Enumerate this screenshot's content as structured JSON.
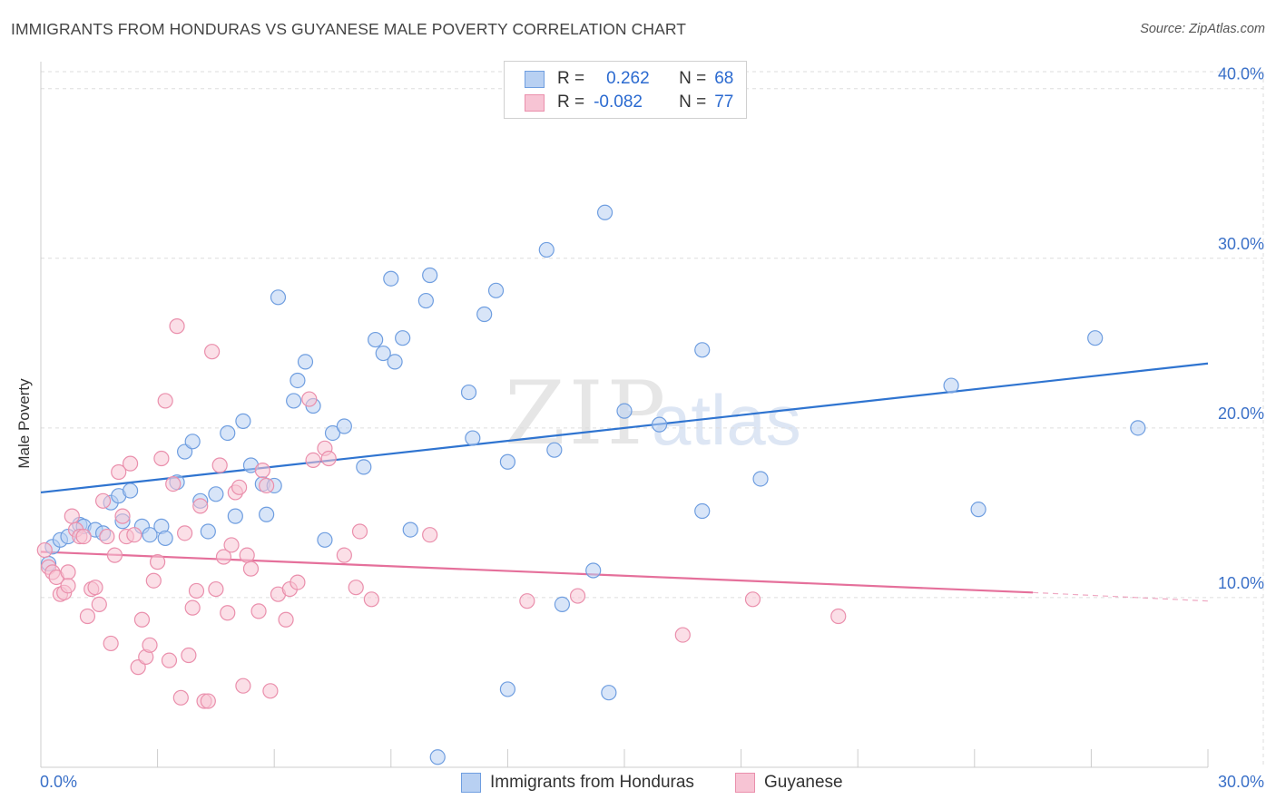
{
  "title": "IMMIGRANTS FROM HONDURAS VS GUYANESE MALE POVERTY CORRELATION CHART",
  "source": "Source: ZipAtlas.com",
  "watermark": {
    "zip": "ZIP",
    "atlas": "atlas"
  },
  "legend": {
    "rows": [
      {
        "r_label": "R =",
        "r_value": "0.262",
        "n_label": "N =",
        "n_value": "68"
      },
      {
        "r_label": "R =",
        "r_value": "-0.082",
        "n_label": "N =",
        "n_value": "77"
      }
    ]
  },
  "bottom_legend": [
    "Immigrants from Honduras",
    "Guyanese"
  ],
  "colors": {
    "blue_fill": "#b8d0f2",
    "blue_stroke": "#6f9ee0",
    "blue_line": "#2f74d0",
    "pink_fill": "#f7c4d4",
    "pink_stroke": "#ea8fac",
    "pink_line": "#e5709b",
    "tick_text": "#3a70c8",
    "grid": "#dddddd"
  },
  "chart_data": {
    "type": "scatter",
    "title": "IMMIGRANTS FROM HONDURAS VS GUYANESE MALE POVERTY CORRELATION CHART",
    "xlabel": "",
    "ylabel": "Male Poverty",
    "xlim": [
      0,
      30
    ],
    "ylim": [
      0,
      41
    ],
    "x_tick_labels": [
      "0.0%",
      "30.0%"
    ],
    "y_ticks": [
      10,
      20,
      30,
      40
    ],
    "y_tick_labels": [
      "10.0%",
      "20.0%",
      "30.0%",
      "40.0%"
    ],
    "grid": true,
    "legend_position": "top-center",
    "series": [
      {
        "name": "Immigrants from Honduras",
        "color": "#6f9ee0",
        "trend": {
          "x": [
            0,
            30
          ],
          "y": [
            16.2,
            23.8
          ]
        },
        "points": [
          [
            0.2,
            12.0
          ],
          [
            0.3,
            13.0
          ],
          [
            0.5,
            13.4
          ],
          [
            0.7,
            13.6
          ],
          [
            1.0,
            14.3
          ],
          [
            1.1,
            14.2
          ],
          [
            1.4,
            14.0
          ],
          [
            1.6,
            13.8
          ],
          [
            1.8,
            15.6
          ],
          [
            2.0,
            16.0
          ],
          [
            2.1,
            14.5
          ],
          [
            2.3,
            16.3
          ],
          [
            2.6,
            14.2
          ],
          [
            2.8,
            13.7
          ],
          [
            3.1,
            14.2
          ],
          [
            3.2,
            13.5
          ],
          [
            3.5,
            16.8
          ],
          [
            3.7,
            18.6
          ],
          [
            3.9,
            19.2
          ],
          [
            4.1,
            15.7
          ],
          [
            4.3,
            13.9
          ],
          [
            4.5,
            16.1
          ],
          [
            4.8,
            19.7
          ],
          [
            5.0,
            14.8
          ],
          [
            5.2,
            20.4
          ],
          [
            5.4,
            17.8
          ],
          [
            5.7,
            16.7
          ],
          [
            5.8,
            14.9
          ],
          [
            6.0,
            16.6
          ],
          [
            6.1,
            27.7
          ],
          [
            6.5,
            21.6
          ],
          [
            6.6,
            22.8
          ],
          [
            6.8,
            23.9
          ],
          [
            7.0,
            21.3
          ],
          [
            7.3,
            13.4
          ],
          [
            7.5,
            19.7
          ],
          [
            7.8,
            20.1
          ],
          [
            8.3,
            17.7
          ],
          [
            8.6,
            25.2
          ],
          [
            8.8,
            24.4
          ],
          [
            9.0,
            28.8
          ],
          [
            9.1,
            23.9
          ],
          [
            9.3,
            25.3
          ],
          [
            9.5,
            14.0
          ],
          [
            9.9,
            27.5
          ],
          [
            10.0,
            29.0
          ],
          [
            10.2,
            0.6
          ],
          [
            11.0,
            22.1
          ],
          [
            11.1,
            19.4
          ],
          [
            11.4,
            26.7
          ],
          [
            11.7,
            28.1
          ],
          [
            12.0,
            4.6
          ],
          [
            12.0,
            18.0
          ],
          [
            13.0,
            30.5
          ],
          [
            13.2,
            18.7
          ],
          [
            13.4,
            9.6
          ],
          [
            14.2,
            11.6
          ],
          [
            14.5,
            32.7
          ],
          [
            14.6,
            4.4
          ],
          [
            15.0,
            21.0
          ],
          [
            15.9,
            20.2
          ],
          [
            17.0,
            24.6
          ],
          [
            17.0,
            15.1
          ],
          [
            18.5,
            17.0
          ],
          [
            23.4,
            22.5
          ],
          [
            24.1,
            15.2
          ],
          [
            27.1,
            25.3
          ],
          [
            28.2,
            20.0
          ]
        ]
      },
      {
        "name": "Guyanese",
        "color": "#ea8fac",
        "trend": {
          "x": [
            0,
            25.5
          ],
          "y": [
            12.7,
            10.3
          ],
          "dashed_to": [
            30,
            9.8
          ]
        },
        "points": [
          [
            0.1,
            12.8
          ],
          [
            0.2,
            11.8
          ],
          [
            0.3,
            11.5
          ],
          [
            0.4,
            11.2
          ],
          [
            0.5,
            10.2
          ],
          [
            0.6,
            10.3
          ],
          [
            0.7,
            11.5
          ],
          [
            0.7,
            10.7
          ],
          [
            0.8,
            14.8
          ],
          [
            0.9,
            14.0
          ],
          [
            1.0,
            13.6
          ],
          [
            1.1,
            13.6
          ],
          [
            1.2,
            8.9
          ],
          [
            1.3,
            10.5
          ],
          [
            1.4,
            10.6
          ],
          [
            1.5,
            9.6
          ],
          [
            1.6,
            15.7
          ],
          [
            1.7,
            13.6
          ],
          [
            1.8,
            7.3
          ],
          [
            1.9,
            12.5
          ],
          [
            2.0,
            17.4
          ],
          [
            2.1,
            14.8
          ],
          [
            2.2,
            13.6
          ],
          [
            2.3,
            17.9
          ],
          [
            2.4,
            13.7
          ],
          [
            2.5,
            5.9
          ],
          [
            2.6,
            8.7
          ],
          [
            2.7,
            6.5
          ],
          [
            2.8,
            7.2
          ],
          [
            2.9,
            11.0
          ],
          [
            3.0,
            12.1
          ],
          [
            3.1,
            18.2
          ],
          [
            3.2,
            21.6
          ],
          [
            3.3,
            6.3
          ],
          [
            3.4,
            16.7
          ],
          [
            3.5,
            26.0
          ],
          [
            3.6,
            4.1
          ],
          [
            3.7,
            13.8
          ],
          [
            3.8,
            6.6
          ],
          [
            3.9,
            9.4
          ],
          [
            4.0,
            10.4
          ],
          [
            4.1,
            15.4
          ],
          [
            4.2,
            3.9
          ],
          [
            4.3,
            3.9
          ],
          [
            4.4,
            24.5
          ],
          [
            4.5,
            10.5
          ],
          [
            4.6,
            17.8
          ],
          [
            4.7,
            12.4
          ],
          [
            4.8,
            9.1
          ],
          [
            4.9,
            13.1
          ],
          [
            5.0,
            16.2
          ],
          [
            5.1,
            16.5
          ],
          [
            5.2,
            4.8
          ],
          [
            5.3,
            12.5
          ],
          [
            5.4,
            11.7
          ],
          [
            5.6,
            9.2
          ],
          [
            5.7,
            17.5
          ],
          [
            5.8,
            16.6
          ],
          [
            5.9,
            4.5
          ],
          [
            6.1,
            10.2
          ],
          [
            6.3,
            8.7
          ],
          [
            6.4,
            10.5
          ],
          [
            6.6,
            10.9
          ],
          [
            6.9,
            21.7
          ],
          [
            7.0,
            18.1
          ],
          [
            7.3,
            18.8
          ],
          [
            7.4,
            18.2
          ],
          [
            7.8,
            12.5
          ],
          [
            8.1,
            10.6
          ],
          [
            8.2,
            13.9
          ],
          [
            8.5,
            9.9
          ],
          [
            10.0,
            13.7
          ],
          [
            12.5,
            9.8
          ],
          [
            13.8,
            10.1
          ],
          [
            16.5,
            7.8
          ],
          [
            18.3,
            9.9
          ],
          [
            20.5,
            8.9
          ]
        ]
      }
    ]
  }
}
